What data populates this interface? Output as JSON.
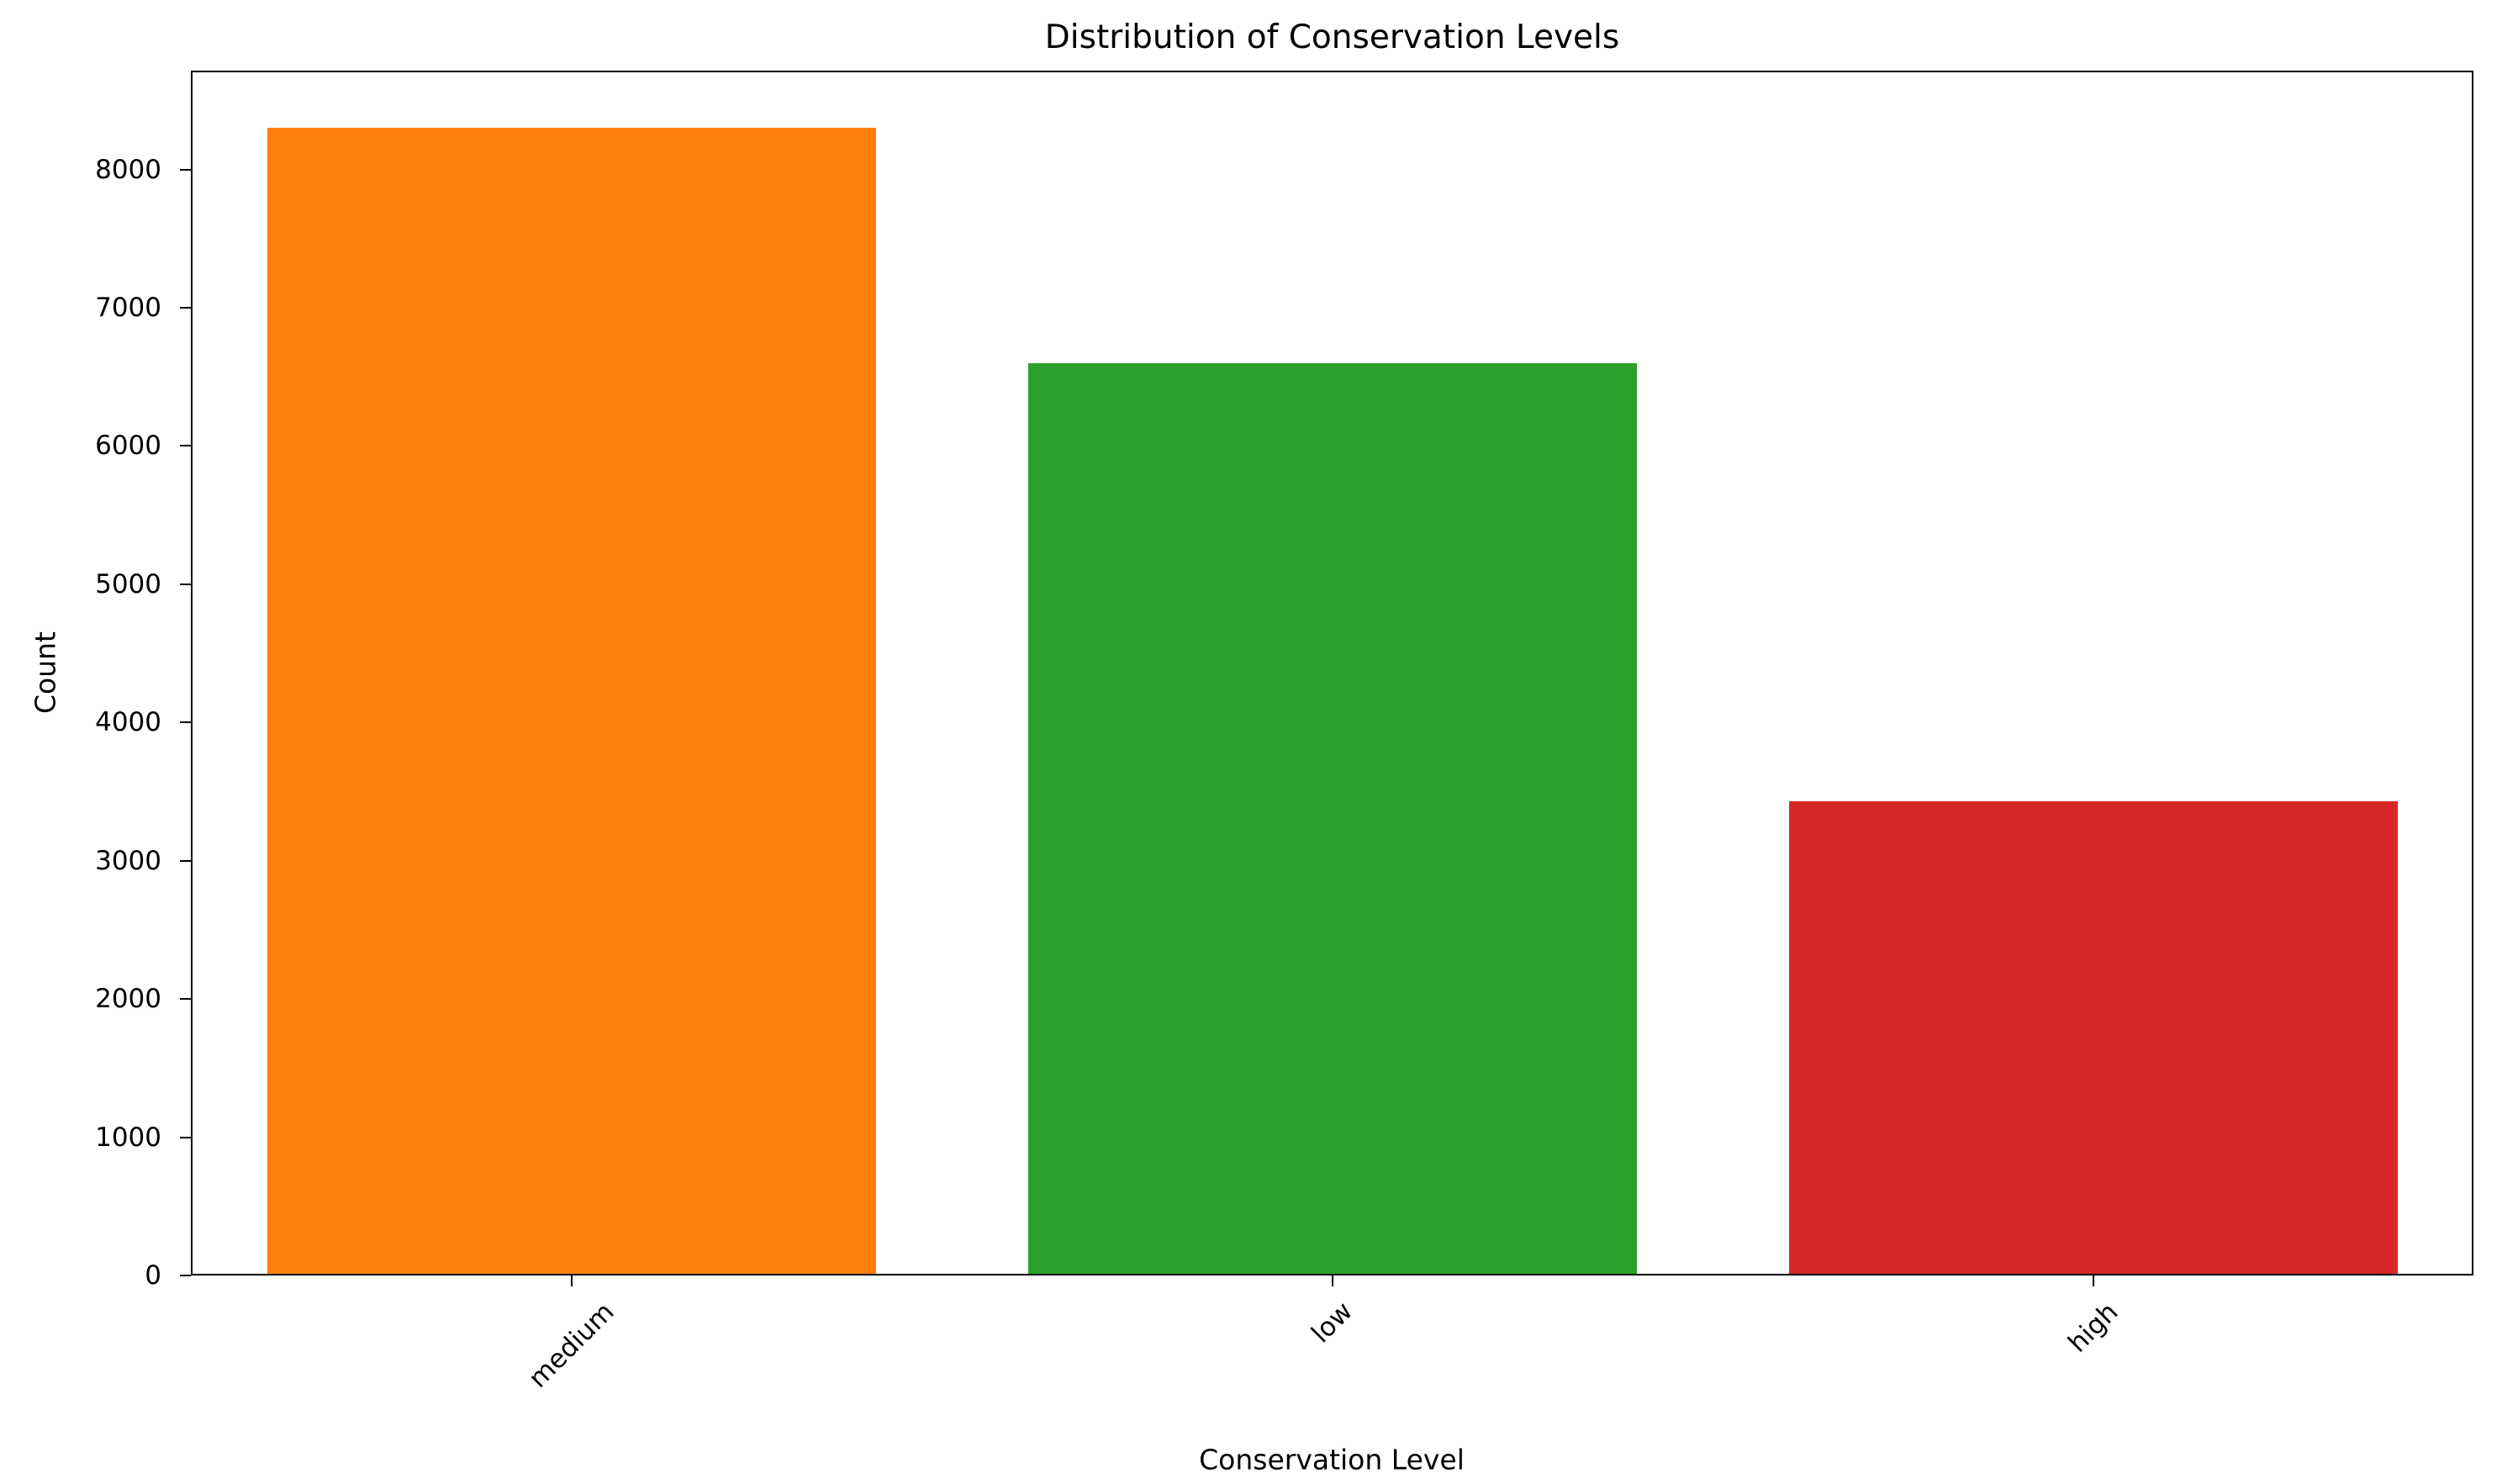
{
  "chart_data": {
    "type": "bar",
    "title": "Distribution of Conservation Levels",
    "xlabel": "Conservation Level",
    "ylabel": "Count",
    "categories": [
      "medium",
      "low",
      "high"
    ],
    "values": [
      8300,
      6600,
      3430
    ],
    "colors": [
      "#ff7f0e",
      "#2ca02c",
      "#d62728"
    ],
    "ylim": [
      0,
      8715
    ],
    "yticks": [
      0,
      1000,
      2000,
      3000,
      4000,
      5000,
      6000,
      7000,
      8000
    ],
    "bar_width_ratio": 0.8,
    "grid": false,
    "legend": null,
    "x_tick_rotation": 45,
    "background_color": "#ffffff",
    "axis_color": "#000000"
  }
}
